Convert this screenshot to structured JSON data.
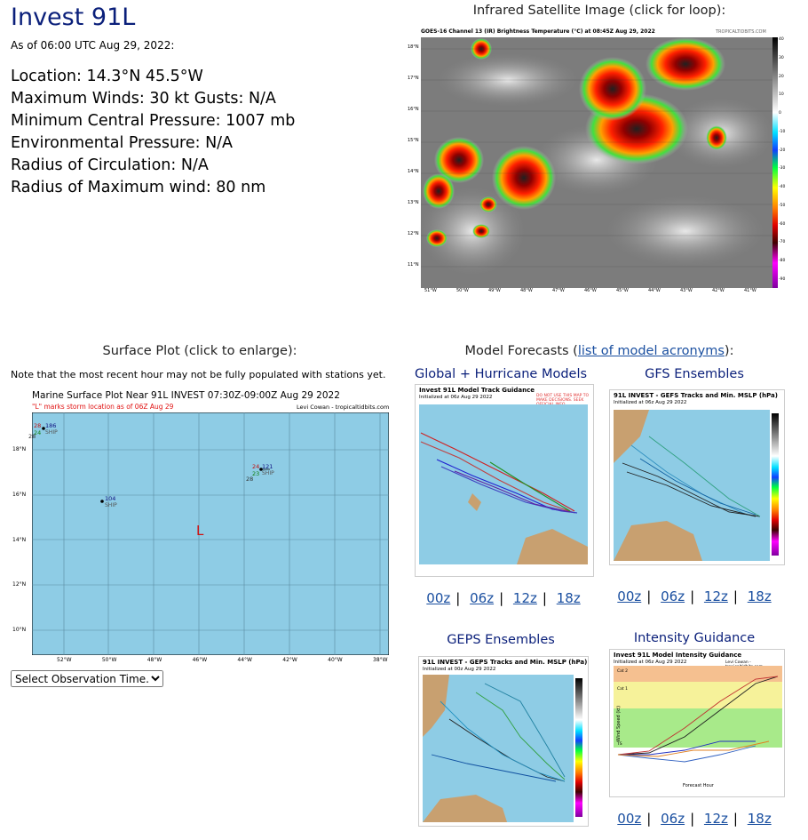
{
  "header": {
    "title": "Invest 91L",
    "as_of": "As of 06:00 UTC Aug 29, 2022:"
  },
  "stats": [
    "Location: 14.3°N 45.5°W",
    "Maximum Winds: 30 kt  Gusts: N/A",
    "Minimum Central Pressure: 1007 mb",
    "Environmental Pressure: N/A",
    "Radius of Circulation: N/A",
    "Radius of Maximum wind: 80 nm"
  ],
  "satellite": {
    "caption": "Infrared Satellite Image (click for loop):",
    "image_title": "GOES-16 Channel 13 (IR) Brightness Temperature (°C) at 08:45Z Aug 29, 2022",
    "credit": "TROPICALTIDBITS.COM",
    "lat_labels": [
      "18°N",
      "17°N",
      "16°N",
      "15°N",
      "14°N",
      "13°N",
      "12°N",
      "11°N"
    ],
    "lon_labels": [
      "51°W",
      "50°W",
      "49°W",
      "48°W",
      "47°W",
      "46°W",
      "45°W",
      "44°W",
      "43°W",
      "42°W",
      "41°W"
    ],
    "scale_labels": [
      "40",
      "30",
      "20",
      "10",
      "0",
      "-10",
      "-20",
      "-30",
      "-40",
      "-50",
      "-60",
      "-70",
      "-80",
      "-90"
    ]
  },
  "surface": {
    "caption": "Surface Plot (click to enlarge):",
    "note": "Note that the most recent hour may not be fully populated with stations yet.",
    "plot_title": "Marine Surface Plot Near 91L INVEST 07:30Z-09:00Z Aug 29 2022",
    "subtitle": "\"L\" marks storm location as of 06Z Aug 29",
    "credit": "Levi Cowan - tropicaltidbits.com",
    "lat_labels": [
      "18°N",
      "16°N",
      "14°N",
      "12°N",
      "10°N"
    ],
    "lon_labels": [
      "52°W",
      "50°W",
      "48°W",
      "46°W",
      "44°W",
      "42°W",
      "40°W",
      "38°W"
    ],
    "storm_marker": "L",
    "stations": [
      {
        "temp": "28",
        "dew": "24",
        "pressure": "186",
        "id": "SHIP",
        "extra": "28"
      },
      {
        "temp": "",
        "dew": "",
        "pressure": "104",
        "id": "SHIP",
        "extra": ""
      },
      {
        "temp": "24",
        "dew": "23",
        "pressure": "121",
        "id": "SHIP",
        "extra": "28"
      }
    ],
    "select_label": "Select Observation Time..."
  },
  "models": {
    "caption_prefix": "Model Forecasts (",
    "caption_link": "list of model acronyms",
    "caption_suffix": "):",
    "panels": [
      {
        "heading": "Global + Hurricane Models",
        "image_title": "Invest 91L Model Track Guidance",
        "image_sub": "Initialized at 06z Aug 29 2022",
        "warn": "DO NOT USE THIS MAP TO MAKE DECISIONS. SEEK OFFICIAL INFO."
      },
      {
        "heading": "GFS Ensembles",
        "image_title": "91L INVEST - GEFS Tracks and Min. MSLP (hPa)",
        "image_sub": "Initialized at 06z Aug 29 2022"
      },
      {
        "heading": "GEPS Ensembles",
        "image_title": "91L INVEST - GEPS Tracks and Min. MSLP (hPa)",
        "image_sub": "Initialized at 00z Aug 29 2022"
      },
      {
        "heading": "Intensity Guidance",
        "image_title": "Invest 91L Model Intensity Guidance",
        "image_sub": "Initialized at 06z Aug 29 2022",
        "ylabel": "Wind Speed (kt)",
        "xlabel": "Forecast Hour",
        "bands": [
          "Cat 2",
          "Cat 1",
          "TS",
          "TD"
        ]
      }
    ],
    "runs": [
      "00z",
      "06z",
      "12z",
      "18z"
    ],
    "separator": "|",
    "credit": "Levi Cowan - tropicaltidbits.com"
  }
}
